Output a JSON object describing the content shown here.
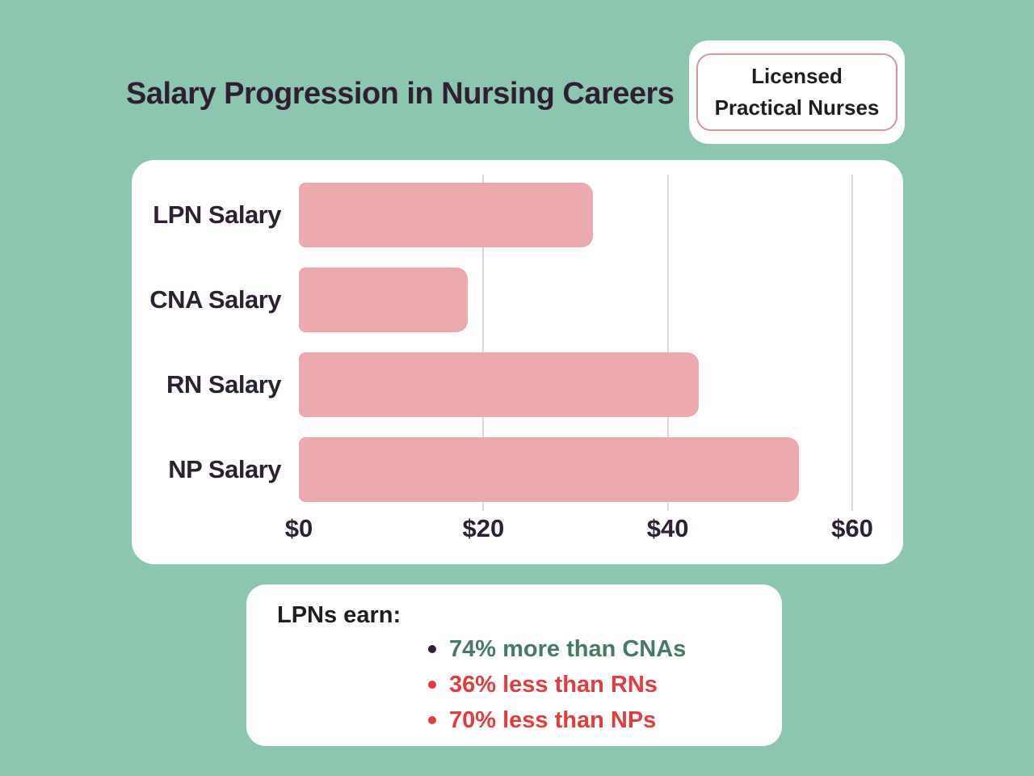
{
  "header": {
    "title": "Salary Progression in Nursing Careers",
    "badge": {
      "line1": "Licensed",
      "line2": "Practical Nurses"
    }
  },
  "chart_data": {
    "type": "bar",
    "orientation": "horizontal",
    "title": "Salary Progression in Nursing Careers",
    "categories": [
      "LPN Salary",
      "CNA Salary",
      "RN Salary",
      "NP Salary"
    ],
    "values": [
      31.9,
      18.3,
      43.4,
      54.2
    ],
    "xlim": [
      0,
      60
    ],
    "x_ticks": [
      0,
      20,
      40,
      60
    ],
    "x_tick_labels": [
      "$0",
      "$20",
      "$40",
      "$60"
    ],
    "gridline_values": [
      20,
      40,
      60
    ],
    "grid": true,
    "legend": "none",
    "xlabel": "",
    "ylabel": ""
  },
  "notes": {
    "heading": "LPNs earn:",
    "items": [
      {
        "text": "74% more than CNAs",
        "sentiment": "positive"
      },
      {
        "text": "36% less than RNs",
        "sentiment": "negative"
      },
      {
        "text": "70% less than NPs",
        "sentiment": "negative"
      }
    ]
  },
  "colors": {
    "background": "#8cc6ae",
    "card": "#ffffff",
    "bar": "#eaa9ac",
    "badge_border": "#d49a9e",
    "gridline": "#d9d9d9",
    "text_dark": "#2e1f33",
    "positive": "#477a60",
    "negative": "#e03e3e"
  }
}
